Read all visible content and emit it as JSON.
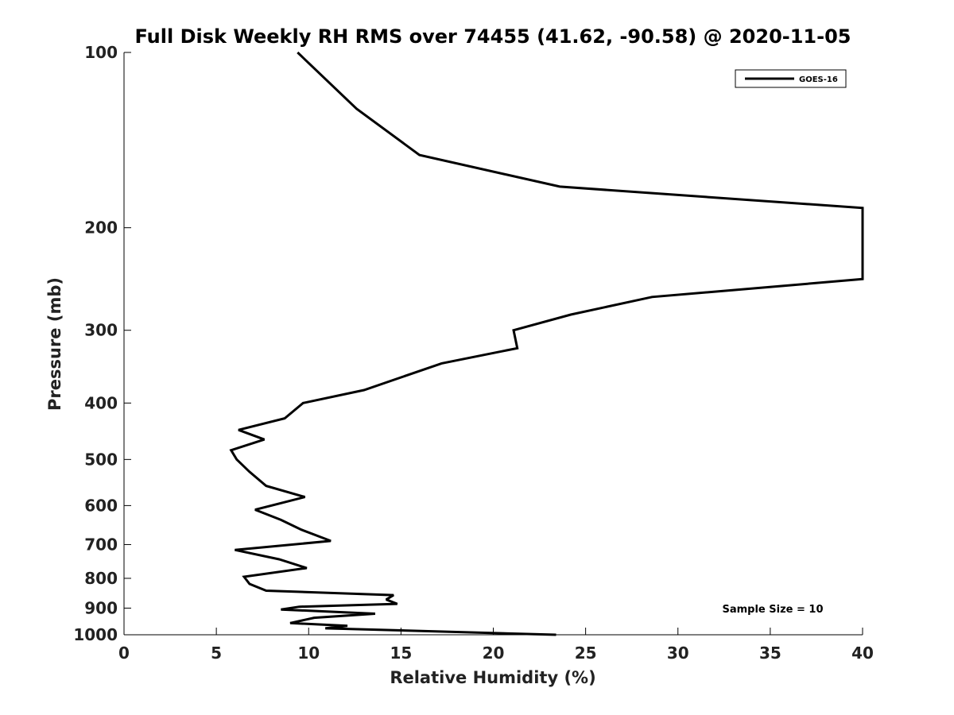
{
  "chart_data": {
    "type": "line",
    "title": "Full Disk Weekly RH RMS over 74455 (41.62, -90.58) @ 2020-11-05",
    "xlabel": "Relative Humidity (%)",
    "ylabel": "Pressure (mb)",
    "xlim": [
      0,
      40
    ],
    "ylim": [
      100,
      1000
    ],
    "y_scale": "log",
    "y_reversed": true,
    "x_ticks": [
      0,
      5,
      10,
      15,
      20,
      25,
      30,
      35,
      40
    ],
    "x_tick_labels": [
      "0",
      "5",
      "10",
      "15",
      "20",
      "25",
      "30",
      "35",
      "40"
    ],
    "y_ticks": [
      100,
      200,
      300,
      400,
      500,
      600,
      700,
      800,
      900,
      1000
    ],
    "y_tick_labels": [
      "100",
      "200",
      "300",
      "400",
      "500",
      "600",
      "700",
      "800",
      "900",
      "1000"
    ],
    "grid": false,
    "legend_position": "top-right",
    "annotation": "Sample Size = 10",
    "series": [
      {
        "name": "GOES-16",
        "color": "#000000",
        "points": [
          [
            9.4,
            100
          ],
          [
            12.6,
            125
          ],
          [
            16.0,
            150
          ],
          [
            23.6,
            170
          ],
          [
            40.0,
            185
          ],
          [
            40.0,
            245
          ],
          [
            28.6,
            263
          ],
          [
            24.2,
            282
          ],
          [
            21.1,
            300
          ],
          [
            21.3,
            322
          ],
          [
            17.2,
            342
          ],
          [
            13.0,
            380
          ],
          [
            9.7,
            400
          ],
          [
            8.7,
            425
          ],
          [
            6.2,
            445
          ],
          [
            7.6,
            462
          ],
          [
            5.8,
            482
          ],
          [
            6.1,
            500
          ],
          [
            6.8,
            525
          ],
          [
            7.7,
            555
          ],
          [
            9.8,
            580
          ],
          [
            7.1,
            610
          ],
          [
            8.5,
            635
          ],
          [
            9.6,
            660
          ],
          [
            11.2,
            690
          ],
          [
            6.0,
            715
          ],
          [
            8.4,
            742
          ],
          [
            9.9,
            768
          ],
          [
            6.5,
            795
          ],
          [
            6.8,
            818
          ],
          [
            7.7,
            840
          ],
          [
            14.6,
            855
          ],
          [
            14.2,
            870
          ],
          [
            14.8,
            885
          ],
          [
            9.5,
            895
          ],
          [
            8.5,
            905
          ],
          [
            13.6,
            920
          ],
          [
            10.3,
            935
          ],
          [
            9.0,
            955
          ],
          [
            12.1,
            965
          ],
          [
            10.9,
            975
          ],
          [
            23.4,
            1000
          ]
        ]
      }
    ]
  }
}
